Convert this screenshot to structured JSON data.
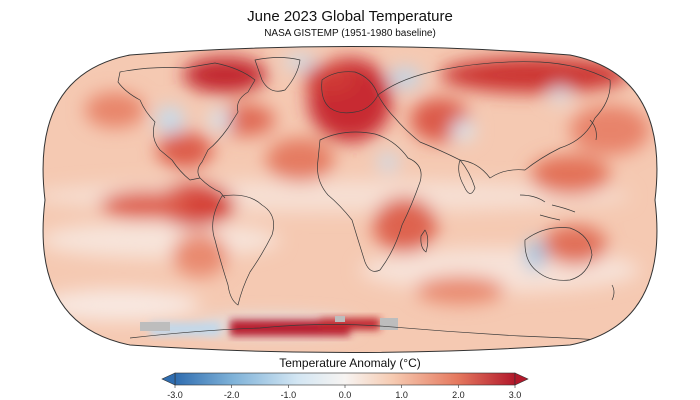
{
  "title": "June 2023 Global Temperature",
  "subtitle": "NASA GISTEMP (1951-1980 baseline)",
  "colorbar": {
    "label": "Temperature Anomaly (°C)",
    "min": -3.0,
    "max": 3.0,
    "ticks": [
      "-3.0",
      "-2.0",
      "-1.0",
      "0.0",
      "1.0",
      "2.0",
      "3.0"
    ],
    "colors": {
      "cold_deep": "#2f6db0",
      "cold_mid": "#7fb2d8",
      "cold_light": "#d3e6f3",
      "neutral": "#f7f4f2",
      "warm_light": "#f6cbb2",
      "warm_mid": "#e5795f",
      "warm_deep": "#b2182b"
    }
  },
  "map": {
    "projection": "robinson-like",
    "ocean_background": "#f5c9b2",
    "coastline_color": "#3a3a3a",
    "missing_data_color": "#bdbdbd"
  }
}
